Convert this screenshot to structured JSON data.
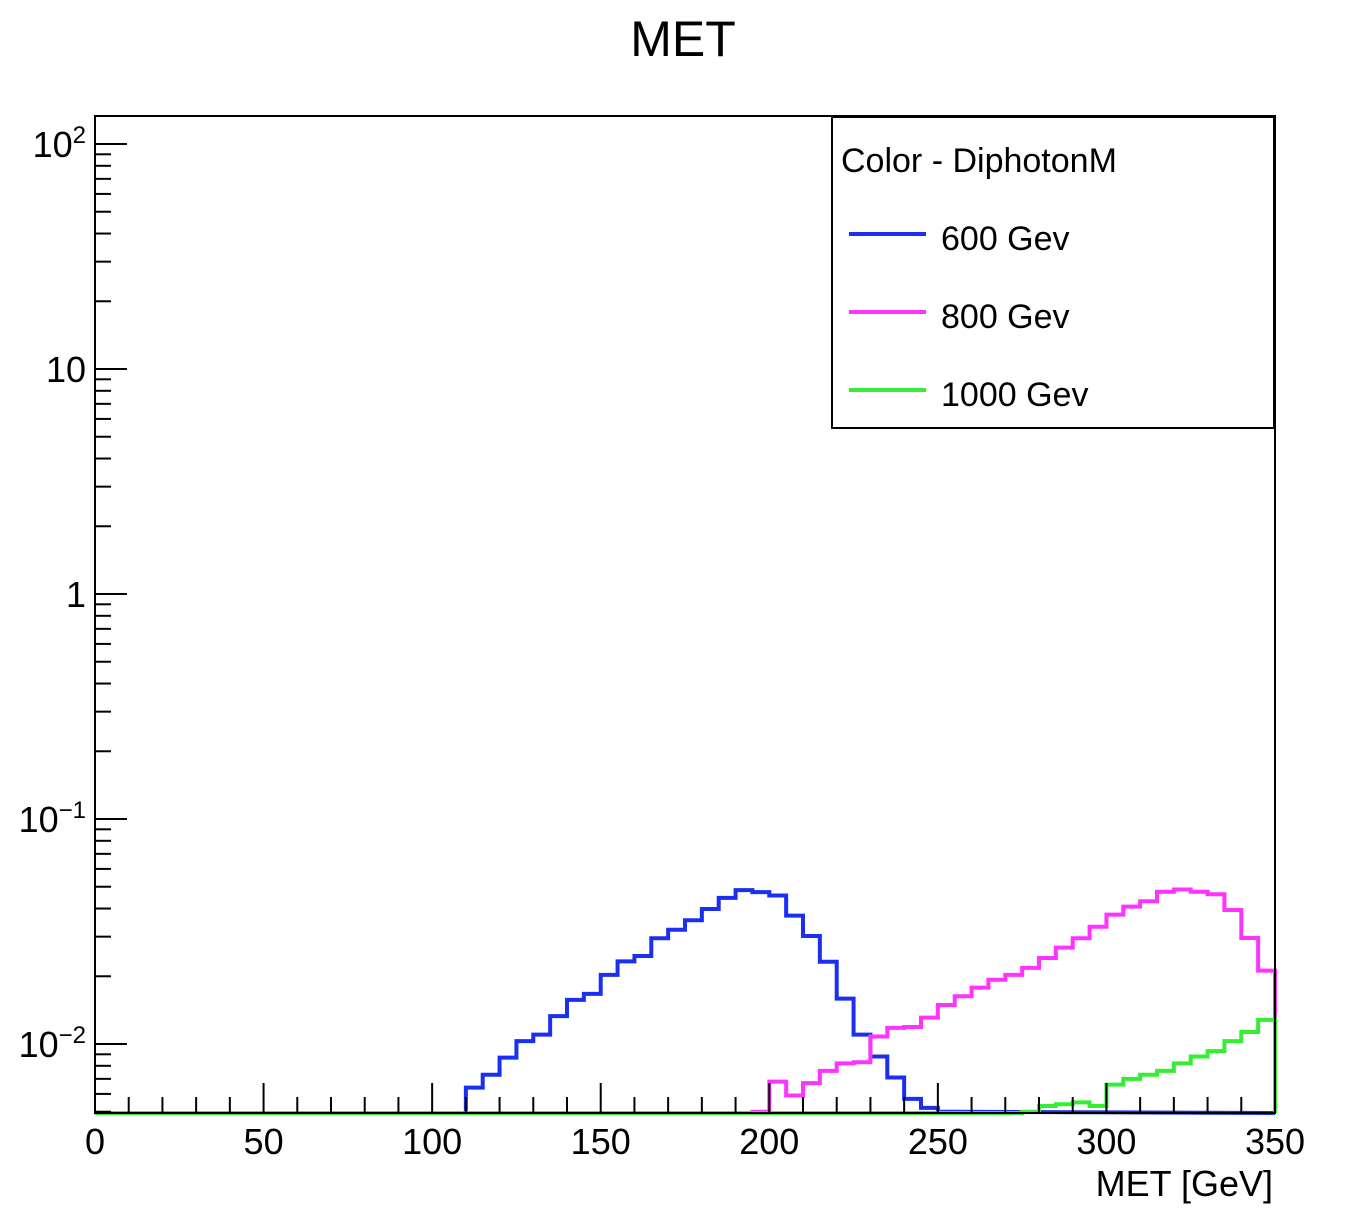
{
  "chart_data": {
    "type": "line",
    "title": "MET",
    "xlabel": "MET [GeV]",
    "ylabel": "",
    "xlim": [
      0,
      350
    ],
    "ylim": [
      0.005,
      130
    ],
    "y_scale": "log",
    "grid": false,
    "legend_position": "top-right",
    "legend_title": "Color - DiphotonM",
    "x_ticks": [
      "0",
      "50",
      "100",
      "150",
      "200",
      "250",
      "300",
      "350"
    ],
    "y_ticks": [
      {
        "value": 0.01,
        "base": "10",
        "exp": "−2"
      },
      {
        "value": 0.1,
        "base": "10",
        "exp": "−1"
      },
      {
        "value": 1,
        "base": "1",
        "exp": ""
      },
      {
        "value": 10,
        "base": "10",
        "exp": ""
      },
      {
        "value": 100,
        "base": "10",
        "exp": "2"
      }
    ],
    "bin_width": 5,
    "series": [
      {
        "name": "600 Gev",
        "color": "#1a2ff0",
        "style": "step",
        "x": [
          110,
          115,
          120,
          125,
          130,
          135,
          140,
          145,
          150,
          155,
          160,
          165,
          170,
          175,
          180,
          185,
          190,
          195,
          200,
          205,
          210,
          215,
          220,
          225,
          230,
          235,
          240,
          245,
          250
        ],
        "values": [
          0.0064,
          0.0073,
          0.0087,
          0.0103,
          0.011,
          0.0133,
          0.0157,
          0.0167,
          0.0203,
          0.0233,
          0.0246,
          0.0295,
          0.0322,
          0.0355,
          0.0398,
          0.0446,
          0.0483,
          0.0473,
          0.0457,
          0.0372,
          0.0302,
          0.0232,
          0.0159,
          0.011,
          0.0088,
          0.0071,
          0.0057,
          0.0052,
          0.005
        ]
      },
      {
        "name": "800 Gev",
        "color": "#ff33ff",
        "style": "step",
        "x": [
          195,
          200,
          205,
          210,
          215,
          220,
          225,
          230,
          235,
          240,
          245,
          250,
          255,
          260,
          265,
          270,
          275,
          280,
          285,
          290,
          295,
          300,
          305,
          310,
          315,
          320,
          325,
          330,
          335,
          340,
          345
        ],
        "values": [
          0.005,
          0.0068,
          0.0059,
          0.0067,
          0.0076,
          0.0082,
          0.0083,
          0.0108,
          0.0118,
          0.0119,
          0.0131,
          0.0149,
          0.0163,
          0.0178,
          0.0193,
          0.0203,
          0.0218,
          0.0241,
          0.0268,
          0.0295,
          0.0332,
          0.0376,
          0.0408,
          0.0431,
          0.0475,
          0.0486,
          0.0475,
          0.0463,
          0.0394,
          0.0296,
          0.0212
        ]
      },
      {
        "name": "1000 Gev",
        "color": "#33ee33",
        "style": "step",
        "x": [
          275,
          280,
          285,
          290,
          295,
          300,
          305,
          310,
          315,
          320,
          325,
          330,
          335,
          340,
          345
        ],
        "values": [
          0.005,
          0.0053,
          0.0054,
          0.0055,
          0.0053,
          0.0066,
          0.007,
          0.0073,
          0.0076,
          0.0082,
          0.0088,
          0.0093,
          0.0103,
          0.0113,
          0.0128
        ]
      }
    ]
  }
}
